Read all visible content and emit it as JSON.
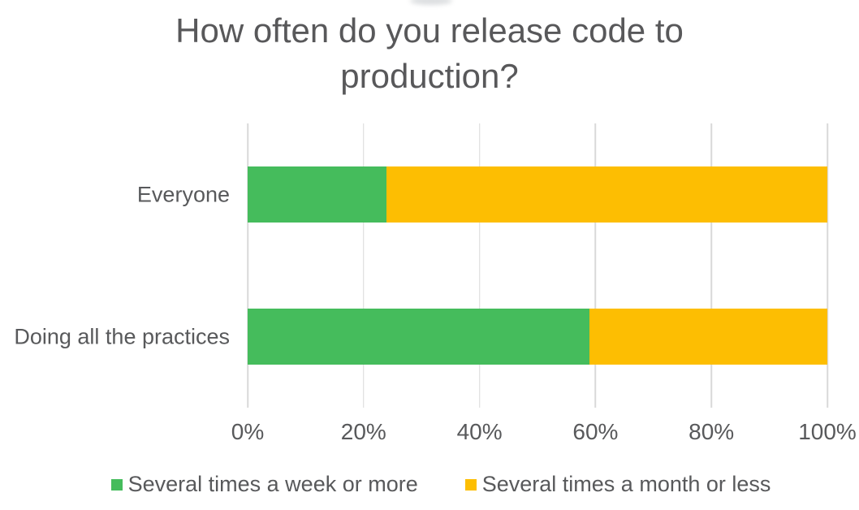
{
  "title": "How often do you release code to production?",
  "chart_data": {
    "type": "bar",
    "orientation": "horizontal",
    "stacked": true,
    "title": "How often do you release code to production?",
    "categories": [
      "Everyone",
      "Doing all the practices"
    ],
    "series": [
      {
        "name": "Several times a week or more",
        "color": "#45BC5C",
        "values": [
          24,
          59
        ]
      },
      {
        "name": "Several times a month or less",
        "color": "#FDBE02",
        "values": [
          76,
          41
        ]
      }
    ],
    "xlabel": "",
    "ylabel": "",
    "xlim": [
      0,
      100
    ],
    "x_ticks": [
      "0%",
      "20%",
      "40%",
      "60%",
      "80%",
      "100%"
    ],
    "x_tick_values": [
      0,
      20,
      40,
      60,
      80,
      100
    ],
    "grid": "vertical-only",
    "legend_position": "bottom"
  },
  "colors": {
    "text": "#58595B",
    "title_text": "#58585A",
    "gridline": "#D9D9D9",
    "background": "#FFFFFF",
    "green": "#45BC5C",
    "yellow": "#FDBE02"
  }
}
